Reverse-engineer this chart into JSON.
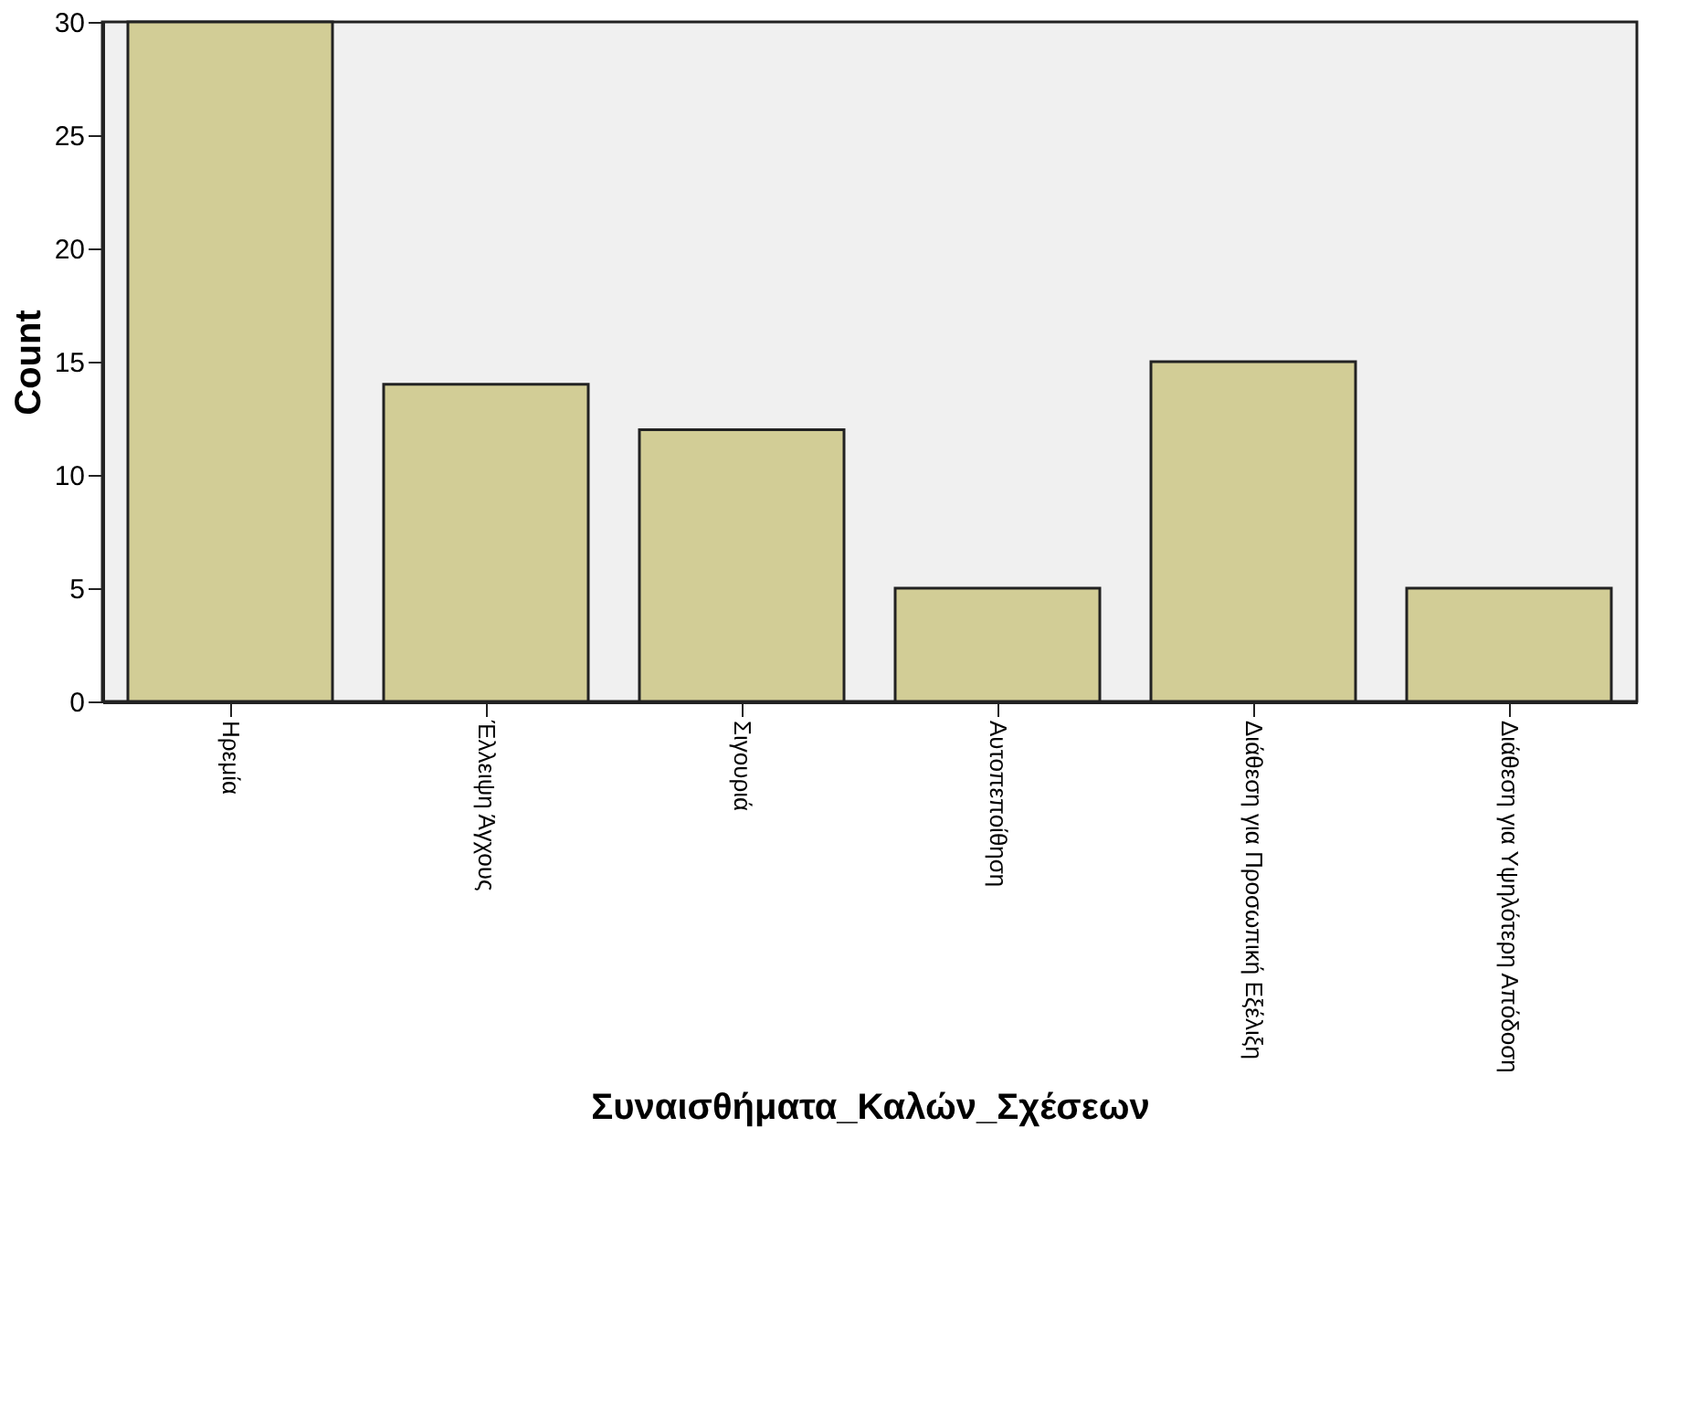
{
  "chart_data": {
    "type": "bar",
    "xlabel": "Συναισθήματα_Καλών_Σχέσεων",
    "ylabel": "Count",
    "categories": [
      "Ηρεμία",
      "Έλλειψη Άγχους",
      "Σιγουριά",
      "Αυτοπεποίθηση",
      "Διάθεση για Προσωπική Εξέλιξη",
      "Διάθεση για Υψηλότερη Απόδοση"
    ],
    "values": [
      30,
      14,
      12,
      5,
      15,
      5
    ],
    "color": "#d2cd96",
    "ylim": [
      0,
      30
    ],
    "yticks": [
      0,
      5,
      10,
      15,
      20,
      25,
      30
    ],
    "grid": false
  }
}
